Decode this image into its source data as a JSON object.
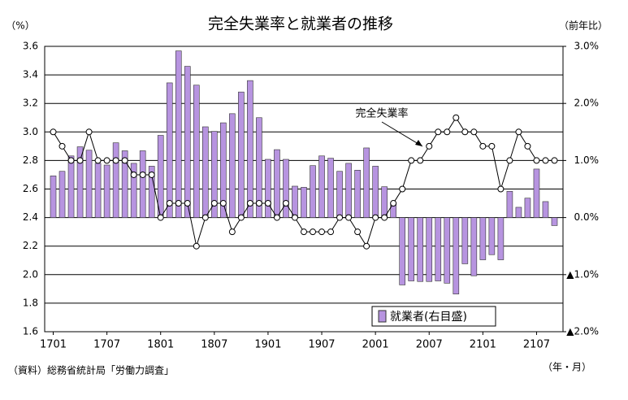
{
  "chart_data": {
    "type": "combo",
    "title": "完全失業率と就業者の推移",
    "y_label": "（%）",
    "y2_label": "（前年比）",
    "x_label": "（年・月）",
    "source": "（資料）総務省統計局「労働力調査」",
    "categories": [
      "1701",
      null,
      null,
      null,
      null,
      null,
      "1707",
      null,
      null,
      null,
      null,
      null,
      "1801",
      null,
      null,
      null,
      null,
      null,
      "1807",
      null,
      null,
      null,
      null,
      null,
      "1901",
      null,
      null,
      null,
      null,
      null,
      "1907",
      null,
      null,
      null,
      null,
      null,
      "2001",
      null,
      null,
      null,
      null,
      null,
      "2007",
      null,
      null,
      null,
      null,
      null,
      "2101",
      null,
      null,
      null,
      null,
      null,
      "2107",
      null,
      null
    ],
    "series": [
      {
        "name": "就業者(右目盛)",
        "type": "bar",
        "axis": "y2",
        "color": "#b794e0",
        "values": [
          0.73,
          0.81,
          1.08,
          1.24,
          1.18,
          0.95,
          0.92,
          1.31,
          1.17,
          0.95,
          1.17,
          0.9,
          1.44,
          2.36,
          2.92,
          2.65,
          2.32,
          1.59,
          1.51,
          1.66,
          1.82,
          2.2,
          2.4,
          1.75,
          1.02,
          1.19,
          1.02,
          0.55,
          0.53,
          0.91,
          1.08,
          1.04,
          0.81,
          0.95,
          0.83,
          1.22,
          0.9,
          0.54,
          0.26,
          -1.18,
          -1.11,
          -1.12,
          -1.12,
          -1.11,
          -1.15,
          -1.34,
          -0.81,
          -1.02,
          -0.74,
          -0.65,
          -0.74,
          0.46,
          0.18,
          0.34,
          0.85,
          0.28,
          -0.14
        ]
      },
      {
        "name": "完全失業率",
        "type": "line",
        "axis": "y",
        "color": "#000000",
        "values": [
          3.0,
          2.9,
          2.8,
          2.8,
          3.0,
          2.8,
          2.8,
          2.8,
          2.8,
          2.7,
          2.7,
          2.7,
          2.4,
          2.5,
          2.5,
          2.5,
          2.2,
          2.4,
          2.5,
          2.5,
          2.3,
          2.4,
          2.5,
          2.5,
          2.5,
          2.4,
          2.5,
          2.4,
          2.3,
          2.3,
          2.3,
          2.3,
          2.4,
          2.4,
          2.3,
          2.2,
          2.4,
          2.4,
          2.5,
          2.6,
          2.8,
          2.8,
          2.9,
          3.0,
          3.0,
          3.1,
          3.0,
          3.0,
          2.9,
          2.9,
          2.6,
          2.8,
          3.0,
          2.9,
          2.8,
          2.8,
          2.8
        ]
      }
    ],
    "ylim": [
      1.6,
      3.6
    ],
    "yticks": [
      1.6,
      1.8,
      {
        "value": 2.0,
        "label": "2.0"
      },
      2.2,
      2.4,
      2.6,
      2.8,
      {
        "value": 3.0,
        "label": "3.0"
      },
      3.2,
      3.4,
      3.6
    ],
    "y2lim": [
      -2,
      3
    ],
    "y2ticks": [
      {
        "value": -2,
        "label": "▲2.0%"
      },
      {
        "value": -1,
        "label": "▲1.0%"
      },
      {
        "value": 0,
        "label": "0.0%"
      },
      {
        "value": 1,
        "label": "1.0%"
      },
      {
        "value": 2,
        "label": "2.0%"
      },
      {
        "value": 3,
        "label": "3.0%"
      }
    ],
    "grid": true
  }
}
